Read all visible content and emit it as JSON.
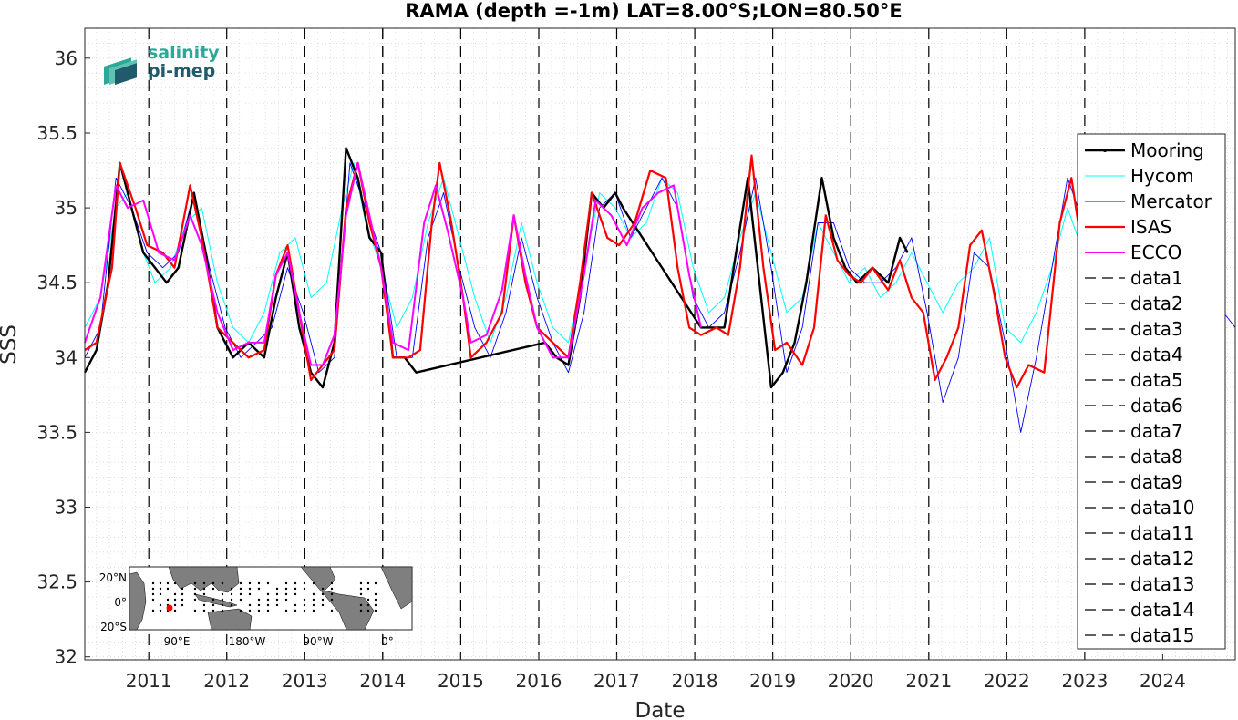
{
  "chart_data": {
    "type": "line",
    "title": "RAMA (depth =-1m) LAT=8.00°S;LON=80.50°E",
    "xlabel": "Date",
    "ylabel": "SSS",
    "xlim": [
      2010.1,
      2024.85
    ],
    "ylim": [
      31.98,
      36.2
    ],
    "x_ticks": [
      "2011",
      "2012",
      "2013",
      "2014",
      "2015",
      "2016",
      "2017",
      "2018",
      "2019",
      "2020",
      "2021",
      "2022",
      "2023",
      "2024"
    ],
    "y_ticks": [
      "32",
      "32.5",
      "33",
      "33.5",
      "34",
      "34.5",
      "35",
      "35.5",
      "36"
    ],
    "grid": true,
    "legend_position": "right",
    "colors": {
      "Mooring": "#000000",
      "Hycom": "#00ffff",
      "Mercator": "#0000ff",
      "ISAS": "#ff0000",
      "ECCO": "#ff00ff",
      "data": "#000000"
    },
    "series": [
      {
        "name": "Mooring",
        "x": [
          2010.1,
          2010.25,
          2010.4,
          2010.55,
          2010.7,
          2010.85,
          2011.0,
          2011.15,
          2011.3,
          2011.5,
          2011.65,
          2011.8,
          2012.0,
          2012.2,
          2012.4,
          2012.55,
          2012.7,
          2012.85,
          2013.0,
          2013.15,
          2013.3,
          2013.45,
          2013.6,
          2013.75,
          2013.9,
          2014.05,
          2014.2,
          2014.35,
          2016.0,
          2016.15,
          2016.3,
          2016.45,
          2016.6,
          2016.75,
          2016.9,
          2017.0,
          2018.0,
          2018.15,
          2018.3,
          2018.45,
          2018.6,
          2018.75,
          2018.9,
          2019.05,
          2019.2,
          2019.35,
          2019.55,
          2019.7,
          2019.85,
          2020.0,
          2020.2,
          2020.4,
          2020.55,
          2020.65
        ],
        "y": [
          33.9,
          34.05,
          34.5,
          35.3,
          35.0,
          34.7,
          34.6,
          34.5,
          34.6,
          35.1,
          34.7,
          34.2,
          34.0,
          34.1,
          34.0,
          34.4,
          34.7,
          34.2,
          33.9,
          33.8,
          34.1,
          35.4,
          35.2,
          34.8,
          34.7,
          34.0,
          34.0,
          33.9,
          34.1,
          34.0,
          33.95,
          34.4,
          35.1,
          35.0,
          35.1,
          35.0,
          34.2,
          34.2,
          34.2,
          34.7,
          35.2,
          34.5,
          33.8,
          33.9,
          34.1,
          34.5,
          35.2,
          34.8,
          34.6,
          34.5,
          34.6,
          34.5,
          34.8,
          34.7
        ]
      },
      {
        "name": "Hycom",
        "x": [
          2010.1,
          2010.3,
          2010.5,
          2010.65,
          2010.85,
          2011.0,
          2011.2,
          2011.4,
          2011.6,
          2011.8,
          2012.0,
          2012.2,
          2012.4,
          2012.6,
          2012.8,
          2013.0,
          2013.2,
          2013.4,
          2013.55,
          2013.7,
          2013.9,
          2014.1,
          2014.3,
          2014.5,
          2014.7,
          2014.9,
          2015.1,
          2015.3,
          2015.5,
          2015.7,
          2015.9,
          2016.1,
          2016.3,
          2016.5,
          2016.7,
          2016.9,
          2017.1,
          2017.3,
          2017.5,
          2017.7,
          2017.9,
          2018.1,
          2018.3,
          2018.5,
          2018.7,
          2018.9,
          2019.1,
          2019.3,
          2019.5,
          2019.7,
          2019.9,
          2020.1,
          2020.3,
          2020.5,
          2020.7,
          2020.9,
          2021.1,
          2021.3,
          2021.5,
          2021.7,
          2021.9,
          2022.1,
          2022.3,
          2022.5,
          2022.7,
          2022.9
        ],
        "y": [
          34.2,
          34.4,
          35.0,
          35.1,
          34.7,
          34.5,
          34.6,
          34.9,
          35.0,
          34.5,
          34.2,
          34.1,
          34.3,
          34.7,
          34.8,
          34.4,
          34.5,
          35.0,
          35.3,
          34.9,
          34.6,
          34.2,
          34.4,
          34.9,
          35.2,
          34.8,
          34.4,
          34.1,
          34.4,
          34.9,
          34.5,
          34.2,
          34.1,
          34.6,
          35.1,
          35.0,
          34.8,
          34.9,
          35.2,
          35.1,
          34.6,
          34.3,
          34.4,
          34.8,
          35.1,
          34.7,
          34.3,
          34.4,
          34.9,
          34.7,
          34.5,
          34.6,
          34.4,
          34.5,
          34.7,
          34.5,
          34.3,
          34.5,
          34.6,
          34.8,
          34.2,
          34.1,
          34.3,
          34.6,
          35.0,
          34.7
        ]
      },
      {
        "name": "Mercator",
        "x": [
          2010.1,
          2010.3,
          2010.5,
          2010.7,
          2010.9,
          2011.1,
          2011.3,
          2011.5,
          2011.7,
          2011.9,
          2012.1,
          2012.3,
          2012.5,
          2012.7,
          2012.9,
          2013.1,
          2013.3,
          2013.5,
          2013.7,
          2013.9,
          2014.1,
          2014.3,
          2014.5,
          2014.7,
          2014.9,
          2015.1,
          2015.3,
          2015.5,
          2015.7,
          2015.9,
          2016.1,
          2016.3,
          2016.5,
          2016.7,
          2016.9,
          2017.1,
          2017.3,
          2017.5,
          2017.7,
          2017.9,
          2018.1,
          2018.3,
          2018.5,
          2018.7,
          2018.9,
          2019.1,
          2019.3,
          2019.5,
          2019.7,
          2019.9,
          2020.1,
          2020.3,
          2020.5,
          2020.7,
          2020.9,
          2021.1,
          2021.3,
          2021.5,
          2021.7,
          2021.9,
          2022.1,
          2022.3,
          2022.5,
          2022.7,
          2022.9,
          2023.1,
          2023.3,
          2023.5,
          2023.7,
          2023.9,
          2024.1,
          2024.3,
          2024.5,
          2024.7,
          2024.85
        ],
        "y": [
          34.0,
          34.2,
          35.2,
          35.0,
          34.7,
          34.6,
          34.7,
          35.1,
          34.6,
          34.2,
          34.0,
          34.1,
          34.2,
          34.6,
          34.3,
          33.9,
          34.0,
          35.3,
          35.0,
          34.7,
          34.0,
          34.0,
          34.8,
          35.1,
          34.6,
          34.2,
          34.0,
          34.3,
          34.8,
          34.4,
          34.1,
          33.9,
          34.3,
          35.0,
          35.1,
          34.8,
          35.0,
          35.2,
          35.0,
          34.4,
          34.2,
          34.3,
          34.7,
          35.2,
          34.6,
          33.9,
          34.2,
          34.9,
          34.9,
          34.6,
          34.5,
          34.5,
          34.6,
          34.8,
          34.3,
          33.7,
          34.0,
          34.7,
          34.6,
          34.1,
          33.5,
          34.0,
          34.6,
          35.2,
          34.9,
          34.4,
          34.5,
          34.7,
          34.4,
          34.0,
          34.1,
          34.5,
          34.7,
          34.3,
          34.2
        ]
      },
      {
        "name": "ISAS",
        "x": [
          2010.1,
          2010.25,
          2010.45,
          2010.55,
          2010.75,
          2010.9,
          2011.1,
          2011.25,
          2011.45,
          2011.6,
          2011.8,
          2012.0,
          2012.2,
          2012.4,
          2012.55,
          2012.7,
          2012.85,
          2013.0,
          2013.15,
          2013.3,
          2013.45,
          2013.6,
          2013.75,
          2013.9,
          2014.05,
          2014.25,
          2014.4,
          2014.55,
          2014.65,
          2014.8,
          2014.95,
          2015.05,
          2015.25,
          2015.45,
          2015.6,
          2015.75,
          2015.9,
          2016.1,
          2016.3,
          2016.45,
          2016.6,
          2016.8,
          2016.95,
          2017.15,
          2017.35,
          2017.55,
          2017.7,
          2017.85,
          2018.0,
          2018.2,
          2018.35,
          2018.5,
          2018.65,
          2018.8,
          2018.95,
          2019.1,
          2019.3,
          2019.45,
          2019.6,
          2019.75,
          2019.9,
          2020.05,
          2020.2,
          2020.4,
          2020.55,
          2020.7,
          2020.85,
          2021.0,
          2021.15,
          2021.3,
          2021.45,
          2021.6,
          2021.75,
          2021.9,
          2022.05,
          2022.2,
          2022.4,
          2022.6,
          2022.75,
          2022.85
        ],
        "y": [
          34.05,
          34.1,
          34.6,
          35.3,
          35.0,
          34.75,
          34.7,
          34.6,
          35.15,
          34.8,
          34.2,
          34.1,
          34.0,
          34.05,
          34.55,
          34.75,
          34.3,
          33.85,
          33.95,
          34.05,
          35.0,
          35.3,
          34.9,
          34.6,
          34.0,
          34.0,
          34.05,
          34.9,
          35.3,
          34.9,
          34.4,
          34.0,
          34.1,
          34.3,
          34.95,
          34.5,
          34.2,
          34.1,
          34.0,
          34.5,
          35.1,
          34.8,
          34.75,
          34.9,
          35.25,
          35.2,
          34.6,
          34.2,
          34.15,
          34.2,
          34.15,
          34.6,
          35.35,
          34.6,
          34.05,
          34.1,
          33.95,
          34.2,
          34.95,
          34.65,
          34.55,
          34.5,
          34.6,
          34.45,
          34.65,
          34.4,
          34.3,
          33.85,
          34.0,
          34.2,
          34.75,
          34.85,
          34.45,
          34.0,
          33.8,
          33.95,
          33.9,
          34.9,
          35.2,
          34.85
        ]
      },
      {
        "name": "ECCO",
        "x": [
          2010.1,
          2010.3,
          2010.5,
          2010.65,
          2010.85,
          2011.05,
          2011.25,
          2011.45,
          2011.6,
          2011.8,
          2012.0,
          2012.2,
          2012.4,
          2012.55,
          2012.7,
          2012.85,
          2013.0,
          2013.15,
          2013.3,
          2013.45,
          2013.6,
          2013.75,
          2013.9,
          2014.05,
          2014.25,
          2014.45,
          2014.6,
          2014.75,
          2014.95,
          2015.05,
          2015.25,
          2015.45,
          2015.6,
          2015.75,
          2015.9,
          2016.1,
          2016.3,
          2016.5,
          2016.65,
          2016.85,
          2017.05,
          2017.25,
          2017.45,
          2017.65,
          2017.85,
          2018.0
        ],
        "y": [
          34.1,
          34.4,
          35.15,
          35.0,
          35.05,
          34.7,
          34.65,
          34.95,
          34.75,
          34.3,
          34.05,
          34.1,
          34.1,
          34.55,
          34.7,
          34.3,
          33.95,
          33.95,
          34.15,
          34.95,
          35.3,
          34.95,
          34.6,
          34.1,
          34.05,
          34.9,
          35.15,
          34.85,
          34.4,
          34.1,
          34.15,
          34.45,
          34.95,
          34.55,
          34.2,
          34.0,
          34.0,
          34.55,
          35.05,
          34.95,
          34.75,
          35.0,
          35.1,
          35.15,
          34.55,
          34.2
        ]
      }
    ],
    "vertical_lines": [
      {
        "name": "data1",
        "x": 2010.92
      },
      {
        "name": "data2",
        "x": 2011.92
      },
      {
        "name": "data3",
        "x": 2012.92
      },
      {
        "name": "data4",
        "x": 2013.92
      },
      {
        "name": "data5",
        "x": 2014.92
      },
      {
        "name": "data6",
        "x": 2015.92
      },
      {
        "name": "data7",
        "x": 2016.92
      },
      {
        "name": "data8",
        "x": 2017.92
      },
      {
        "name": "data9",
        "x": 2018.92
      },
      {
        "name": "data10",
        "x": 2019.92
      },
      {
        "name": "data11",
        "x": 2020.92
      },
      {
        "name": "data12",
        "x": 2021.92
      },
      {
        "name": "data13",
        "x": 2022.92
      },
      {
        "name": "data14",
        "x": 2012.92
      },
      {
        "name": "data15",
        "x": 2013.92
      }
    ]
  },
  "logo": {
    "line1": "salinity",
    "line2": "pi-mep"
  },
  "inset_map": {
    "lat_labels": [
      "20°N",
      "0°",
      "20°S"
    ],
    "lon_labels": [
      "90°E",
      "180°W",
      "90°W",
      "0°"
    ]
  }
}
